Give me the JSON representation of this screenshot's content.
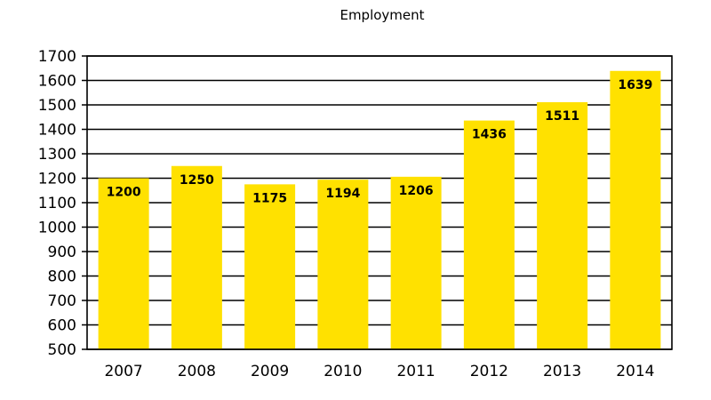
{
  "chart_data": {
    "type": "bar",
    "title": "Employment",
    "xlabel": "",
    "ylabel": "",
    "categories": [
      "2007",
      "2008",
      "2009",
      "2010",
      "2011",
      "2012",
      "2013",
      "2014"
    ],
    "values": [
      1200,
      1250,
      1175,
      1194,
      1206,
      1436,
      1511,
      1639
    ],
    "data_labels": [
      "1200",
      "1250",
      "1175",
      "1194",
      "1206",
      "1436",
      "1511",
      "1639"
    ],
    "ylim": [
      500,
      1700
    ],
    "yticks": [
      "500",
      "600",
      "700",
      "800",
      "900",
      "1000",
      "1100",
      "1200",
      "1300",
      "1400",
      "1500",
      "1600",
      "1700"
    ],
    "grid": true,
    "legend": "none",
    "colors": {
      "bar": "#ffe100",
      "grid": "#000000",
      "text": "#000000"
    }
  }
}
